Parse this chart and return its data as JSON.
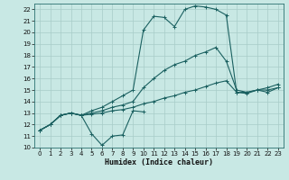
{
  "xlabel": "Humidex (Indice chaleur)",
  "xlim": [
    -0.5,
    23.5
  ],
  "ylim": [
    10,
    22.5
  ],
  "xticks": [
    0,
    1,
    2,
    3,
    4,
    5,
    6,
    7,
    8,
    9,
    10,
    11,
    12,
    13,
    14,
    15,
    16,
    17,
    18,
    19,
    20,
    21,
    22,
    23
  ],
  "yticks": [
    10,
    11,
    12,
    13,
    14,
    15,
    16,
    17,
    18,
    19,
    20,
    21,
    22
  ],
  "bg_color": "#c8e8e4",
  "grid_color": "#a8ccc8",
  "line_color": "#1a6060",
  "series": [
    [
      11.5,
      12.0,
      12.8,
      13.0,
      12.8,
      11.2,
      10.2,
      11.0,
      11.1,
      13.2,
      13.1,
      null,
      null,
      null,
      null,
      null,
      null,
      null,
      null,
      null,
      null,
      null,
      null,
      null
    ],
    [
      11.5,
      12.0,
      12.8,
      13.0,
      12.8,
      12.9,
      13.0,
      13.2,
      13.3,
      13.5,
      13.8,
      14.0,
      14.3,
      14.5,
      14.8,
      15.0,
      15.3,
      15.6,
      15.8,
      14.8,
      14.8,
      15.0,
      15.0,
      15.2
    ],
    [
      11.5,
      12.0,
      12.8,
      13.0,
      12.8,
      13.0,
      13.2,
      13.5,
      13.7,
      14.0,
      15.2,
      16.0,
      16.7,
      17.2,
      17.5,
      18.0,
      18.3,
      18.7,
      17.5,
      15.0,
      14.8,
      15.0,
      15.2,
      15.5
    ],
    [
      11.5,
      12.0,
      12.8,
      13.0,
      12.8,
      13.2,
      13.5,
      14.0,
      14.5,
      15.0,
      20.2,
      21.4,
      21.3,
      20.5,
      22.0,
      22.3,
      22.2,
      22.0,
      21.5,
      14.8,
      14.7,
      15.0,
      14.8,
      15.2
    ]
  ]
}
